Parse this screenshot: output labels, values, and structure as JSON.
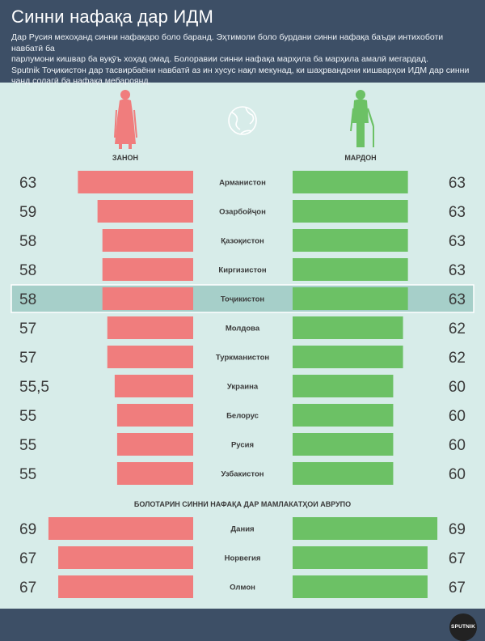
{
  "header": {
    "title": "Синни нафақа дар ИДМ",
    "lines": [
      "Дар Русия мехоҳанд синни нафақаро боло баранд. Эҳтимоли  боло бурдани синни нафақа баъди интихоботи навбатӣ ба",
      "парлумони кишвар ба вуқӯъ хоҳад омад. Болоравии синни нафақа марҳила ба марҳила амалӣ мегардад.",
      "Sputnik Тоҷикистон  дар тасвирбаёни навбатӣ аз ин хусус нақл мекунад,  ки шаҳрвандони кишварҳои ИДМ дар синни",
      "чанд солагӣ ба нафақа мебароянд."
    ]
  },
  "legend": {
    "women": "ЗАНОН",
    "men": "МАРДОН"
  },
  "section2_title": "БОЛОТАРИН СИННИ НАФАҚА ДАР МАМЛАКАТҲОИ АВРУПО",
  "logo_text": "SPUTNIK",
  "colors": {
    "women": "#f07d7d",
    "men": "#6cc165",
    "header_bg": "#3d4f66",
    "background": "#d7ece9",
    "highlight": "#a6cfc9"
  },
  "icons": [
    "woman-silhouette-icon",
    "man-silhouette-icon",
    "globe-icon"
  ],
  "chart_data": {
    "type": "bar",
    "categories": [
      "Арманистон",
      "Озарбойҷон",
      "Қазоқистон",
      "Киргизистон",
      "Тоҷикистон",
      "Молдова",
      "Туркманистон",
      "Украина",
      "Белорус",
      "Русия",
      "Узбакистон",
      "Дания",
      "Норвегия",
      "Олмон"
    ],
    "series": [
      {
        "name": "ЗАНОН",
        "values": [
          63,
          59,
          58,
          58,
          58,
          57,
          57,
          55.5,
          55,
          55,
          55,
          69,
          67,
          67
        ],
        "labels": [
          "63",
          "59",
          "58",
          "58",
          "58",
          "57",
          "57",
          "55,5",
          "55",
          "55",
          "55",
          "69",
          "67",
          "67"
        ]
      },
      {
        "name": "МАРДОН",
        "values": [
          63,
          63,
          63,
          63,
          63,
          62,
          62,
          60,
          60,
          60,
          60,
          69,
          67,
          67
        ],
        "labels": [
          "63",
          "63",
          "63",
          "63",
          "63",
          "62",
          "62",
          "60",
          "60",
          "60",
          "60",
          "69",
          "67",
          "67"
        ]
      }
    ],
    "highlight": "Тоҷикистон"
  }
}
